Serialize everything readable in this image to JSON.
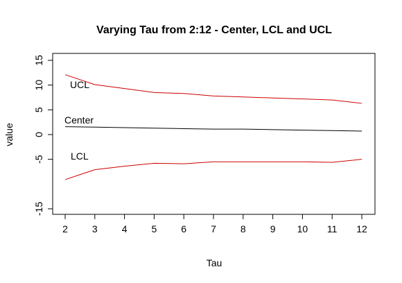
{
  "chart_data": {
    "type": "line",
    "title": "Varying Tau from 2:12 - Center, LCL and UCL",
    "xlabel": "Tau",
    "ylabel": "value",
    "x": [
      2,
      3,
      4,
      5,
      6,
      7,
      8,
      9,
      10,
      11,
      12
    ],
    "xlim": [
      2,
      12
    ],
    "ylim": [
      -15,
      15
    ],
    "xticks": [
      2,
      3,
      4,
      5,
      6,
      7,
      8,
      9,
      10,
      11,
      12
    ],
    "yticks": [
      -15,
      -5,
      0,
      5,
      10,
      15
    ],
    "grid": false,
    "series": [
      {
        "name": "UCL",
        "color": "#cc0000",
        "values": [
          12.1,
          10.1,
          9.3,
          8.5,
          8.3,
          7.8,
          7.6,
          7.4,
          7.2,
          7.0,
          6.3
        ]
      },
      {
        "name": "Center",
        "color": "#000000",
        "values": [
          1.6,
          1.5,
          1.4,
          1.3,
          1.2,
          1.1,
          1.1,
          1.0,
          0.9,
          0.8,
          0.7
        ]
      },
      {
        "name": "LCL",
        "color": "#cc0000",
        "values": [
          -9.1,
          -7.1,
          -6.4,
          -5.8,
          -5.9,
          -5.5,
          -5.5,
          -5.5,
          -5.5,
          -5.6,
          -5.0
        ]
      }
    ]
  }
}
